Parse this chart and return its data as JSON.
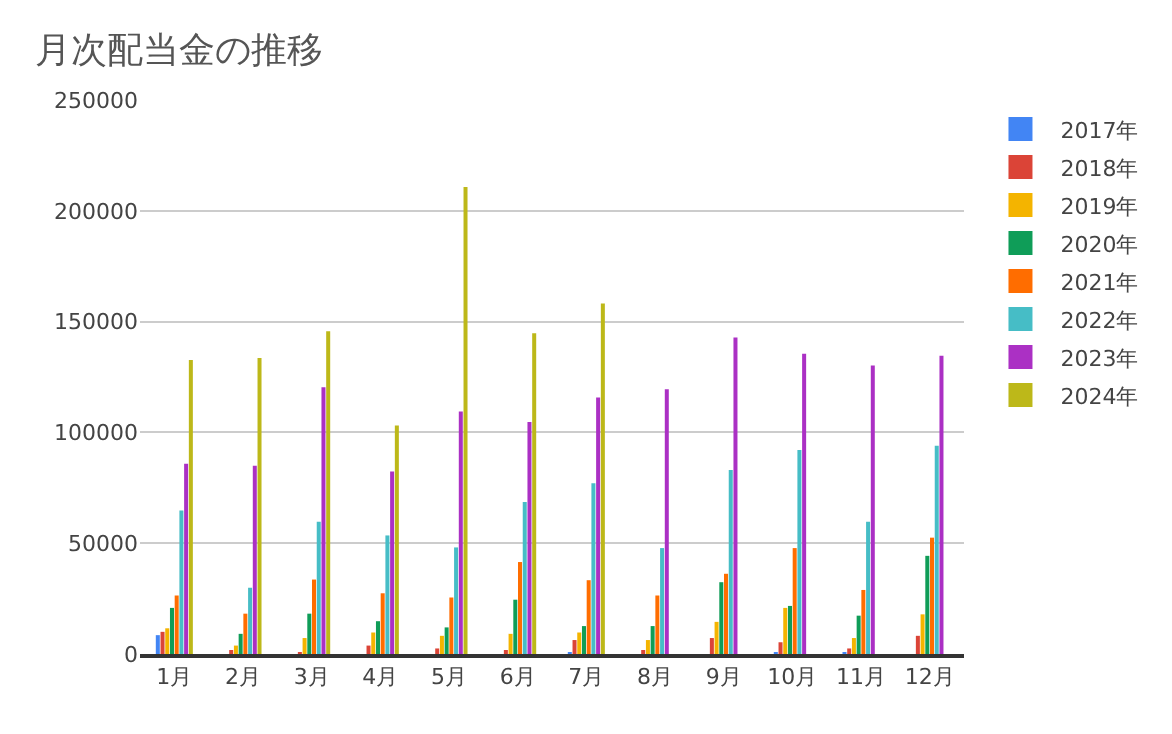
{
  "chart_data": {
    "type": "bar",
    "title": "月次配当金の推移",
    "categories": [
      "1月",
      "2月",
      "3月",
      "4月",
      "5月",
      "6月",
      "7月",
      "8月",
      "9月",
      "10月",
      "11月",
      "12月"
    ],
    "series": [
      {
        "name": "2017年",
        "color": "#4285f4",
        "values": [
          8500,
          0,
          0,
          0,
          0,
          0,
          900,
          0,
          0,
          900,
          900,
          0
        ]
      },
      {
        "name": "2018年",
        "color": "#db4437",
        "values": [
          10000,
          1600,
          900,
          3800,
          2500,
          1600,
          6300,
          1600,
          7200,
          5300,
          2500,
          8200
        ]
      },
      {
        "name": "2019年",
        "color": "#f4b400",
        "values": [
          11600,
          3800,
          7200,
          9700,
          8200,
          9100,
          9700,
          6300,
          14500,
          20800,
          7200,
          17900
        ]
      },
      {
        "name": "2020年",
        "color": "#0f9d58",
        "values": [
          20800,
          9100,
          18200,
          14800,
          12000,
          24500,
          12600,
          12600,
          32400,
          21700,
          17300,
          44300
        ]
      },
      {
        "name": "2021年",
        "color": "#ff6d00",
        "values": [
          26400,
          18200,
          33600,
          27400,
          25500,
          41500,
          33300,
          26400,
          36200,
          47800,
          28900,
          52500
        ]
      },
      {
        "name": "2022年",
        "color": "#46bdc6",
        "values": [
          64800,
          29900,
          59700,
          53500,
          48100,
          68600,
          77000,
          47800,
          83000,
          92100,
          59700,
          94000
        ]
      },
      {
        "name": "2023年",
        "color": "#ab30c4",
        "values": [
          85800,
          84900,
          120400,
          82400,
          109400,
          104700,
          115700,
          119500,
          142800,
          135500,
          130200,
          134600
        ]
      },
      {
        "name": "2024年",
        "color": "#bdb819",
        "values": [
          132700,
          133600,
          145600,
          103100,
          210700,
          144700,
          158200,
          null,
          null,
          null,
          null,
          null
        ]
      }
    ],
    "ylim": [
      0,
      250000
    ],
    "yticks": [
      0,
      50000,
      100000,
      150000,
      200000,
      250000
    ],
    "grid": "y",
    "legend": "right"
  }
}
